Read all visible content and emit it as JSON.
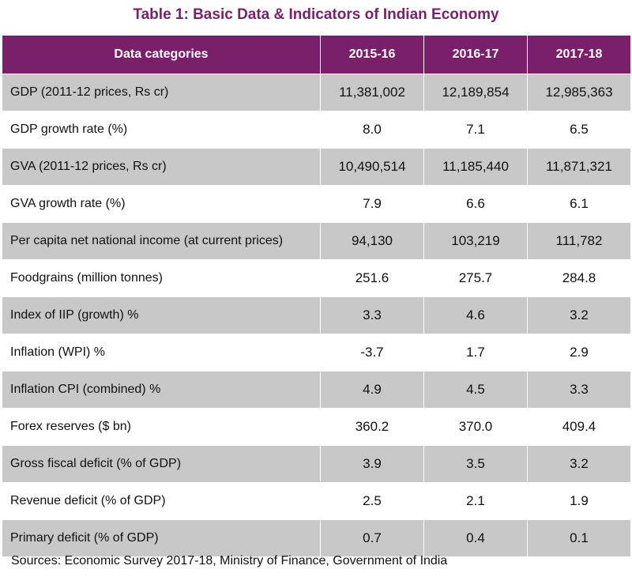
{
  "title": "Table 1: Basic Data & Indicators of Indian Economy",
  "colors": {
    "header_bg": "#7a1f6a",
    "title": "#7a1f6a",
    "row_shade": "#c8c8c8"
  },
  "table": {
    "headers": [
      "Data categories",
      "2015-16",
      "2016-17",
      "2017-18"
    ],
    "rows": [
      {
        "category": "GDP (2011-12 prices, Rs cr)",
        "values": [
          "11,381,002",
          "12,189,854",
          "12,985,363"
        ]
      },
      {
        "category": "GDP growth rate (%)",
        "values": [
          "8.0",
          "7.1",
          "6.5"
        ]
      },
      {
        "category": "GVA (2011-12 prices, Rs cr)",
        "values": [
          "10,490,514",
          "11,185,440",
          "11,871,321"
        ]
      },
      {
        "category": "GVA growth rate (%)",
        "values": [
          "7.9",
          "6.6",
          "6.1"
        ]
      },
      {
        "category": "Per capita net national income (at current prices)",
        "values": [
          "94,130",
          "103,219",
          "111,782"
        ]
      },
      {
        "category": "Foodgrains (million tonnes)",
        "values": [
          "251.6",
          "275.7",
          "284.8"
        ]
      },
      {
        "category": "Index of IIP (growth) %",
        "values": [
          "3.3",
          "4.6",
          "3.2"
        ]
      },
      {
        "category": "Inflation (WPI) %",
        "values": [
          "-3.7",
          "1.7",
          "2.9"
        ]
      },
      {
        "category": "Inflation CPI (combined) %",
        "values": [
          "4.9",
          "4.5",
          "3.3"
        ]
      },
      {
        "category": "Forex reserves ($ bn)",
        "values": [
          "360.2",
          "370.0",
          "409.4"
        ]
      },
      {
        "category": "Gross fiscal deficit (% of GDP)",
        "values": [
          "3.9",
          "3.5",
          "3.2"
        ]
      },
      {
        "category": "Revenue deficit (% of GDP)",
        "values": [
          "2.5",
          "2.1",
          "1.9"
        ]
      },
      {
        "category": "Primary deficit (% of GDP)",
        "values": [
          "0.7",
          "0.4",
          "0.1"
        ]
      }
    ]
  },
  "source": "Sources: Economic Survey 2017-18, Ministry of Finance, Government of India"
}
